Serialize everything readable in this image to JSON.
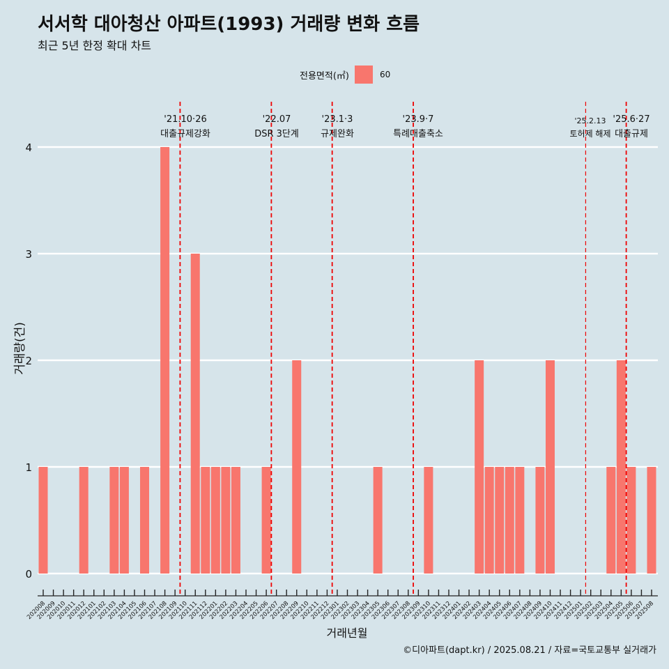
{
  "header": {
    "title": "서서학 대아청산 아파트(1993) 거래량 변화 흐름",
    "subtitle": "최근 5년 한정 확대 차트"
  },
  "legend": {
    "title": "전용면적(㎡)",
    "value": "60"
  },
  "caption": "©디아파트(dapt.kr) / 2025.08.21 / 자료=국토교통부 실거래가",
  "colors": {
    "bar": "#f8766d",
    "vline": "#ee0000",
    "background": "#d6e4ea",
    "grid": "#ffffff"
  },
  "chart_data": {
    "type": "bar",
    "xlabel": "거래년월",
    "ylabel": "거래량(건)",
    "ylim": [
      0,
      4
    ],
    "yticks": [
      0,
      1,
      2,
      3,
      4
    ],
    "grid": "horizontal, white",
    "legend_position": "top",
    "categories": [
      "202008",
      "202009",
      "202010",
      "202011",
      "202012",
      "202101",
      "202102",
      "202103",
      "202104",
      "202105",
      "202106",
      "202107",
      "202108",
      "202109",
      "202110",
      "202111",
      "202112",
      "202201",
      "202202",
      "202203",
      "202204",
      "202205",
      "202206",
      "202207",
      "202208",
      "202209",
      "202210",
      "202211",
      "202212",
      "202301",
      "202302",
      "202303",
      "202304",
      "202305",
      "202306",
      "202307",
      "202308",
      "202309",
      "202310",
      "202311",
      "202312",
      "202401",
      "202402",
      "202403",
      "202404",
      "202405",
      "202406",
      "202407",
      "202408",
      "202409",
      "202410",
      "202411",
      "202412",
      "202501",
      "202502",
      "202503",
      "202504",
      "202505",
      "202506",
      "202507",
      "202508"
    ],
    "series": [
      {
        "name": "60",
        "values": [
          1,
          0,
          0,
          0,
          1,
          0,
          0,
          1,
          1,
          0,
          1,
          0,
          4,
          0,
          0,
          3,
          1,
          1,
          1,
          1,
          0,
          0,
          1,
          0,
          0,
          2,
          0,
          0,
          0,
          0,
          0,
          0,
          0,
          1,
          0,
          0,
          0,
          0,
          1,
          0,
          0,
          0,
          0,
          2,
          1,
          1,
          1,
          1,
          0,
          1,
          2,
          0,
          0,
          0,
          0,
          0,
          1,
          2,
          1,
          0,
          1
        ]
      }
    ],
    "annotations": [
      {
        "date": "'21.10·26",
        "text": "대출규제강화",
        "x": "202110"
      },
      {
        "date": "'22.07",
        "text": "DSR 3단계",
        "x": "202207"
      },
      {
        "date": "'23.1·3",
        "text": "규제완화",
        "x": "202301"
      },
      {
        "date": "'23.9·7",
        "text": "특례대출축소",
        "x": "202309"
      },
      {
        "date": "'25.2.13",
        "text": "토허제 해제",
        "x": "202502"
      },
      {
        "date": "'25.6·27",
        "text": "대출규제",
        "x": "202506"
      }
    ]
  }
}
